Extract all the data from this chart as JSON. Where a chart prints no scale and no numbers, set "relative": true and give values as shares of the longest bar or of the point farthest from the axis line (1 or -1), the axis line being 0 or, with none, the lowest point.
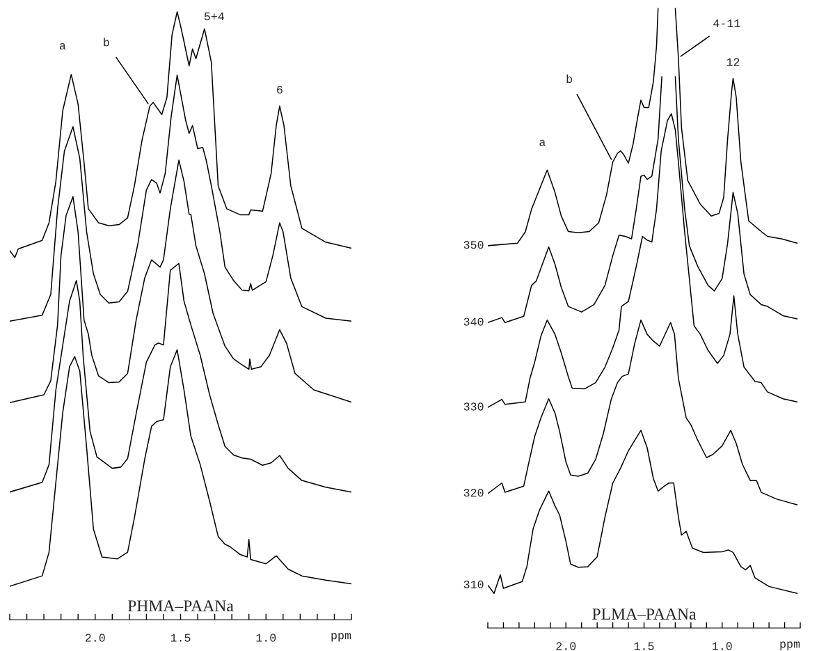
{
  "chart_data": [
    {
      "type": "line",
      "relative": true,
      "title": "PHMA–PAANa",
      "xlabel": "ppm",
      "xlim": [
        2.5,
        0.5
      ],
      "xticks": [
        {
          "value": 2.5,
          "label": null
        },
        {
          "value": 2.4,
          "label": null
        },
        {
          "value": 2.3,
          "label": null
        },
        {
          "value": 2.2,
          "label": null
        },
        {
          "value": 2.1,
          "label": null
        },
        {
          "value": 2.0,
          "label": "2.0"
        },
        {
          "value": 1.9,
          "label": null
        },
        {
          "value": 1.8,
          "label": null
        },
        {
          "value": 1.7,
          "label": null
        },
        {
          "value": 1.6,
          "label": null
        },
        {
          "value": 1.5,
          "label": "1.5"
        },
        {
          "value": 1.4,
          "label": null
        },
        {
          "value": 1.3,
          "label": null
        },
        {
          "value": 1.2,
          "label": null
        },
        {
          "value": 1.1,
          "label": null
        },
        {
          "value": 1.0,
          "label": "1.0"
        },
        {
          "value": 0.9,
          "label": null
        },
        {
          "value": 0.8,
          "label": null
        },
        {
          "value": 0.7,
          "label": null
        },
        {
          "value": 0.6,
          "label": null
        },
        {
          "value": 0.5,
          "label": null
        }
      ],
      "tick_labels": "x",
      "grid": false,
      "legend": false,
      "annotations": [
        {
          "text": "a",
          "x": 2.14,
          "y": 0.897
        },
        {
          "text": "b",
          "x": 1.68,
          "y": 0.845
        },
        {
          "text": "5+4",
          "x": 1.36,
          "y": 0.972
        },
        {
          "text": "6",
          "x": 0.92,
          "y": 0.845
        }
      ],
      "series": [
        {
          "color": "#000000",
          "x": [
            2.5,
            2.47,
            2.45,
            2.31,
            2.27,
            2.23,
            2.19,
            2.14,
            2.1,
            2.065,
            2.04,
            1.98,
            1.92,
            1.86,
            1.81,
            1.77,
            1.725,
            1.68,
            1.66,
            1.61,
            1.58,
            1.55,
            1.52,
            1.5,
            1.48,
            1.45,
            1.43,
            1.41,
            1.36,
            1.32,
            1.28,
            1.23,
            1.15,
            1.1,
            1.09,
            1.02,
            0.97,
            0.94,
            0.92,
            0.895,
            0.855,
            0.79,
            0.65,
            0.5
          ],
          "values": [
            0.607,
            0.596,
            0.61,
            0.624,
            0.653,
            0.721,
            0.837,
            0.897,
            0.848,
            0.752,
            0.676,
            0.653,
            0.648,
            0.65,
            0.661,
            0.714,
            0.79,
            0.845,
            0.851,
            0.831,
            0.859,
            0.962,
            1.0,
            0.977,
            0.951,
            0.911,
            0.939,
            0.923,
            0.972,
            0.917,
            0.714,
            0.676,
            0.666,
            0.666,
            0.674,
            0.672,
            0.734,
            0.813,
            0.845,
            0.813,
            0.714,
            0.644,
            0.621,
            0.611
          ]
        },
        {
          "color": "#000000",
          "x": [
            2.5,
            2.31,
            2.26,
            2.22,
            2.18,
            2.13,
            2.09,
            2.05,
            2.01,
            1.97,
            1.92,
            1.86,
            1.81,
            1.75,
            1.7,
            1.67,
            1.64,
            1.62,
            1.59,
            1.555,
            1.52,
            1.49,
            1.47,
            1.45,
            1.43,
            1.4,
            1.37,
            1.35,
            1.32,
            1.27,
            1.24,
            1.19,
            1.14,
            1.1,
            1.09,
            1.08,
            1.0,
            0.96,
            0.92,
            0.9,
            0.855,
            0.79,
            0.65,
            0.5
          ],
          "values": [
            0.491,
            0.501,
            0.535,
            0.676,
            0.771,
            0.811,
            0.759,
            0.638,
            0.569,
            0.535,
            0.521,
            0.523,
            0.54,
            0.618,
            0.707,
            0.724,
            0.718,
            0.702,
            0.734,
            0.828,
            0.896,
            0.851,
            0.821,
            0.8,
            0.813,
            0.775,
            0.777,
            0.756,
            0.714,
            0.638,
            0.58,
            0.558,
            0.542,
            0.541,
            0.553,
            0.542,
            0.556,
            0.599,
            0.653,
            0.638,
            0.562,
            0.515,
            0.496,
            0.491
          ]
        },
        {
          "color": "#000000",
          "x": [
            2.5,
            2.3,
            2.26,
            2.22,
            2.2,
            2.17,
            2.13,
            2.1,
            2.065,
            2.04,
            2.02,
            1.98,
            1.92,
            1.86,
            1.81,
            1.76,
            1.71,
            1.67,
            1.62,
            1.6,
            1.56,
            1.51,
            1.48,
            1.45,
            1.44,
            1.41,
            1.36,
            1.31,
            1.27,
            1.24,
            1.19,
            1.15,
            1.1,
            1.095,
            1.085,
            1.03,
            0.98,
            0.92,
            0.88,
            0.83,
            0.72,
            0.5
          ],
          "values": [
            0.357,
            0.37,
            0.393,
            0.485,
            0.599,
            0.665,
            0.696,
            0.638,
            0.493,
            0.47,
            0.435,
            0.401,
            0.39,
            0.391,
            0.405,
            0.493,
            0.562,
            0.592,
            0.58,
            0.592,
            0.676,
            0.756,
            0.721,
            0.667,
            0.667,
            0.615,
            0.569,
            0.504,
            0.473,
            0.45,
            0.429,
            0.421,
            0.412,
            0.429,
            0.412,
            0.416,
            0.435,
            0.477,
            0.455,
            0.405,
            0.378,
            0.358
          ]
        },
        {
          "color": "#000000",
          "x": [
            2.5,
            2.31,
            2.27,
            2.23,
            2.15,
            2.11,
            2.09,
            2.07,
            2.03,
            1.99,
            1.9,
            1.85,
            1.81,
            1.76,
            1.7,
            1.65,
            1.63,
            1.6,
            1.56,
            1.51,
            1.48,
            1.44,
            1.385,
            1.33,
            1.28,
            1.24,
            1.19,
            1.14,
            1.09,
            1.02,
            0.97,
            0.92,
            0.87,
            0.79,
            0.65,
            0.5
          ],
          "values": [
            0.21,
            0.226,
            0.255,
            0.378,
            0.524,
            0.558,
            0.524,
            0.433,
            0.31,
            0.268,
            0.249,
            0.251,
            0.265,
            0.339,
            0.424,
            0.452,
            0.455,
            0.452,
            0.575,
            0.586,
            0.524,
            0.485,
            0.435,
            0.37,
            0.321,
            0.285,
            0.271,
            0.266,
            0.264,
            0.254,
            0.258,
            0.27,
            0.249,
            0.229,
            0.218,
            0.21
          ]
        },
        {
          "color": "#000000",
          "x": [
            2.5,
            2.31,
            2.27,
            2.23,
            2.19,
            2.15,
            2.12,
            2.09,
            2.05,
            2.01,
            1.96,
            1.87,
            1.81,
            1.77,
            1.71,
            1.67,
            1.64,
            1.6,
            1.56,
            1.52,
            1.48,
            1.44,
            1.385,
            1.33,
            1.28,
            1.24,
            1.21,
            1.15,
            1.11,
            1.1,
            1.09,
            1.0,
            0.94,
            0.87,
            0.79,
            0.65,
            0.5
          ],
          "values": [
            0.055,
            0.072,
            0.111,
            0.226,
            0.34,
            0.416,
            0.433,
            0.409,
            0.283,
            0.149,
            0.103,
            0.1,
            0.111,
            0.168,
            0.264,
            0.318,
            0.326,
            0.329,
            0.416,
            0.444,
            0.378,
            0.302,
            0.255,
            0.195,
            0.137,
            0.124,
            0.12,
            0.107,
            0.103,
            0.132,
            0.099,
            0.092,
            0.105,
            0.083,
            0.072,
            0.065,
            0.059
          ]
        }
      ]
    },
    {
      "type": "line",
      "relative": true,
      "title": "PLMA–PAANa",
      "xlabel": "ppm",
      "xlim": [
        2.5,
        0.5
      ],
      "xticks": [
        {
          "value": 2.5,
          "label": null
        },
        {
          "value": 2.4,
          "label": null
        },
        {
          "value": 2.3,
          "label": null
        },
        {
          "value": 2.2,
          "label": null
        },
        {
          "value": 2.1,
          "label": null
        },
        {
          "value": 2.0,
          "label": "2.0"
        },
        {
          "value": 1.9,
          "label": null
        },
        {
          "value": 1.8,
          "label": null
        },
        {
          "value": 1.7,
          "label": null
        },
        {
          "value": 1.6,
          "label": null
        },
        {
          "value": 1.5,
          "label": "1.5"
        },
        {
          "value": 1.4,
          "label": null
        },
        {
          "value": 1.3,
          "label": null
        },
        {
          "value": 1.2,
          "label": null
        },
        {
          "value": 1.1,
          "label": null
        },
        {
          "value": 1.0,
          "label": "1.0"
        },
        {
          "value": 0.9,
          "label": null
        },
        {
          "value": 0.8,
          "label": null
        },
        {
          "value": 0.7,
          "label": null
        },
        {
          "value": 0.6,
          "label": null
        },
        {
          "value": 0.5,
          "label": null
        }
      ],
      "tick_labels": "x",
      "grid": false,
      "legend": false,
      "annotations": [
        {
          "text": "a",
          "x": 2.12,
          "y": 0.739
        },
        {
          "text": "b",
          "x": 1.7,
          "y": 0.752
        },
        {
          "text": "4-11",
          "x": 1.28,
          "y": 0.92
        },
        {
          "text": "12",
          "x": 0.93,
          "y": 0.887
        }
      ],
      "series": [
        {
          "name": "350",
          "color": "#000000",
          "x": [
            2.5,
            2.31,
            2.26,
            2.22,
            2.19,
            2.12,
            2.07,
            2.03,
            1.985,
            1.92,
            1.85,
            1.79,
            1.74,
            1.7,
            1.67,
            1.65,
            1.63,
            1.6,
            1.57,
            1.54,
            1.52,
            1.5,
            1.47,
            1.44,
            1.42,
            1.41,
            1.36,
            1.3,
            1.28,
            1.26,
            1.22,
            1.14,
            1.07,
            1.02,
            0.99,
            0.965,
            0.94,
            0.93,
            0.91,
            0.88,
            0.83,
            0.76,
            0.71,
            0.62,
            0.52
          ],
          "values": [
            0.617,
            0.621,
            0.639,
            0.676,
            0.695,
            0.739,
            0.703,
            0.665,
            0.64,
            0.638,
            0.64,
            0.654,
            0.699,
            0.752,
            0.766,
            0.77,
            0.764,
            0.75,
            0.781,
            0.825,
            0.852,
            0.84,
            0.84,
            0.882,
            0.939,
            1.0,
            null,
            1.0,
            0.92,
            0.807,
            0.722,
            0.684,
            0.665,
            0.669,
            0.695,
            0.789,
            0.864,
            0.887,
            0.857,
            0.752,
            0.657,
            0.642,
            0.632,
            0.628,
            0.621
          ]
        },
        {
          "name": "340",
          "color": "#000000",
          "x": [
            2.5,
            2.41,
            2.39,
            2.27,
            2.22,
            2.19,
            2.11,
            2.07,
            2.03,
            1.985,
            1.9,
            1.82,
            1.75,
            1.7,
            1.66,
            1.62,
            1.58,
            1.55,
            1.52,
            1.5,
            1.48,
            1.45,
            1.41,
            1.386,
            1.34,
            1.3,
            1.28,
            1.24,
            1.21,
            1.155,
            1.09,
            1.05,
            1.0,
            0.965,
            0.93,
            0.9,
            0.86,
            0.82,
            0.75,
            0.71,
            0.61,
            0.52
          ],
          "values": [
            0.493,
            0.501,
            0.493,
            0.503,
            0.553,
            0.56,
            0.615,
            0.587,
            0.55,
            0.519,
            0.51,
            0.522,
            0.553,
            0.601,
            0.634,
            0.632,
            0.628,
            0.676,
            0.729,
            0.731,
            0.724,
            0.729,
            0.789,
            0.89,
            null,
            0.89,
            0.789,
            0.676,
            0.617,
            0.583,
            0.553,
            0.544,
            0.564,
            0.621,
            0.703,
            0.669,
            0.571,
            0.538,
            0.522,
            0.519,
            0.504,
            0.499
          ]
        },
        {
          "name": "330",
          "color": "#000000",
          "x": [
            2.5,
            2.41,
            2.39,
            2.26,
            2.23,
            2.2,
            2.16,
            2.12,
            2.07,
            2.03,
            1.985,
            1.96,
            1.88,
            1.81,
            1.75,
            1.7,
            1.66,
            1.645,
            1.6,
            1.55,
            1.51,
            1.48,
            1.45,
            1.42,
            1.39,
            1.35,
            1.325,
            1.3,
            1.28,
            1.24,
            1.21,
            1.18,
            1.14,
            1.09,
            1.03,
            0.99,
            0.95,
            0.925,
            0.9,
            0.86,
            0.79,
            0.75,
            0.71,
            0.61,
            0.52
          ],
          "values": [
            0.356,
            0.369,
            0.361,
            0.365,
            0.403,
            0.429,
            0.471,
            0.497,
            0.474,
            0.444,
            0.406,
            0.387,
            0.386,
            0.396,
            0.421,
            0.452,
            0.481,
            0.519,
            0.527,
            0.583,
            0.632,
            0.626,
            0.623,
            0.676,
            0.77,
            0.819,
            0.83,
            0.804,
            0.752,
            0.639,
            0.564,
            0.488,
            0.474,
            0.448,
            0.427,
            0.44,
            0.474,
            0.536,
            0.474,
            0.421,
            0.398,
            0.396,
            0.381,
            0.37,
            0.365
          ]
        },
        {
          "name": "320",
          "color": "#000000",
          "x": [
            2.5,
            2.41,
            2.39,
            2.27,
            2.24,
            2.2,
            2.16,
            2.11,
            2.07,
            2.04,
            2.0,
            1.97,
            1.92,
            1.86,
            1.81,
            1.76,
            1.71,
            1.67,
            1.64,
            1.6,
            1.56,
            1.52,
            1.48,
            1.44,
            1.4,
            1.36,
            1.33,
            1.305,
            1.28,
            1.23,
            1.2,
            1.16,
            1.1,
            1.06,
            1.0,
            0.945,
            0.91,
            0.87,
            0.82,
            0.78,
            0.75,
            0.65,
            0.52
          ],
          "values": [
            0.217,
            0.234,
            0.219,
            0.229,
            0.264,
            0.309,
            0.339,
            0.37,
            0.347,
            0.317,
            0.268,
            0.247,
            0.245,
            0.25,
            0.272,
            0.314,
            0.369,
            0.396,
            0.406,
            0.41,
            0.459,
            0.497,
            0.474,
            0.463,
            0.455,
            0.477,
            0.493,
            0.474,
            0.403,
            0.339,
            0.328,
            0.305,
            0.275,
            0.28,
            0.294,
            0.319,
            0.298,
            0.264,
            0.238,
            0.238,
            0.219,
            0.208,
            0.199
          ]
        },
        {
          "name": "310",
          "color": "#000000",
          "x": [
            2.5,
            2.46,
            2.42,
            2.4,
            2.28,
            2.25,
            2.21,
            2.17,
            2.11,
            2.07,
            2.04,
            2.0,
            1.97,
            1.92,
            1.86,
            1.8,
            1.75,
            1.7,
            1.65,
            1.6,
            1.52,
            1.48,
            1.44,
            1.41,
            1.37,
            1.34,
            1.31,
            1.28,
            1.26,
            1.23,
            1.19,
            1.12,
            1.0,
            0.96,
            0.93,
            0.88,
            0.85,
            0.82,
            0.79,
            0.7,
            0.52
          ],
          "values": [
            0.069,
            0.056,
            0.086,
            0.064,
            0.075,
            0.099,
            0.16,
            0.19,
            0.221,
            0.197,
            0.182,
            0.14,
            0.103,
            0.098,
            0.099,
            0.115,
            0.179,
            0.234,
            0.258,
            0.286,
            0.319,
            0.291,
            0.241,
            0.221,
            0.229,
            0.234,
            0.234,
            0.179,
            0.15,
            0.156,
            0.129,
            0.122,
            0.123,
            0.126,
            0.122,
            0.099,
            0.094,
            0.101,
            0.081,
            0.067,
            0.056
          ]
        }
      ]
    }
  ]
}
